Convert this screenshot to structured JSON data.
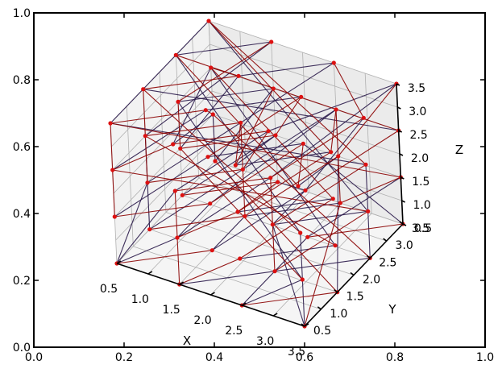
{
  "chart_data": {
    "type": "scatter",
    "projection": "3d",
    "title": "",
    "outer_axes": {
      "xlim": [
        0.0,
        1.0
      ],
      "ylim": [
        0.0,
        1.0
      ],
      "xticks": [
        "0.0",
        "0.2",
        "0.4",
        "0.6",
        "0.8",
        "1.0"
      ],
      "yticks": [
        "0.0",
        "0.2",
        "0.4",
        "0.6",
        "0.8",
        "1.0"
      ]
    },
    "axes3d": {
      "xlabel": "X",
      "ylabel": "Y",
      "zlabel": "Z",
      "xlim": [
        0.5,
        3.5
      ],
      "ylim": [
        0.5,
        3.5
      ],
      "zlim": [
        0.5,
        3.5
      ],
      "xticks": [
        "0.5",
        "1.0",
        "1.5",
        "2.0",
        "2.5",
        "3.0",
        "3.5"
      ],
      "yticks": [
        "0.5",
        "1.0",
        "1.5",
        "2.0",
        "2.5",
        "3.0",
        "3.5"
      ],
      "zticks": [
        "0.5",
        "1.0",
        "1.5",
        "2.0",
        "2.5",
        "3.0",
        "3.5"
      ],
      "grid": true
    },
    "colors": {
      "point": "#dd1111",
      "edge_dark": "#2a1a4a",
      "edge_red": "#8b0000",
      "pane_left": "#f2f2f2",
      "pane_back": "#ebebeb",
      "pane_floor": "#f5f5f5",
      "grid": "#b0b0b0"
    },
    "points": [
      [
        0.5,
        0.5,
        0.5
      ],
      [
        1.5,
        0.5,
        0.5
      ],
      [
        2.5,
        0.5,
        0.5
      ],
      [
        3.5,
        0.5,
        0.5
      ],
      [
        0.5,
        1.5,
        0.5
      ],
      [
        1.5,
        1.5,
        0.5
      ],
      [
        2.5,
        1.5,
        0.5
      ],
      [
        3.5,
        1.5,
        0.5
      ],
      [
        0.5,
        2.5,
        0.5
      ],
      [
        1.5,
        2.5,
        0.5
      ],
      [
        2.5,
        2.5,
        0.5
      ],
      [
        3.5,
        2.5,
        0.5
      ],
      [
        0.5,
        3.5,
        0.5
      ],
      [
        1.5,
        3.5,
        0.5
      ],
      [
        2.5,
        3.5,
        0.5
      ],
      [
        3.5,
        3.5,
        0.5
      ],
      [
        0.5,
        0.5,
        1.5
      ],
      [
        1.5,
        0.5,
        1.5
      ],
      [
        2.5,
        0.5,
        1.5
      ],
      [
        3.5,
        0.5,
        1.5
      ],
      [
        0.5,
        1.5,
        1.5
      ],
      [
        1.5,
        1.5,
        1.5
      ],
      [
        2.5,
        1.5,
        1.5
      ],
      [
        3.5,
        1.5,
        1.5
      ],
      [
        0.5,
        2.5,
        1.5
      ],
      [
        1.5,
        2.5,
        1.5
      ],
      [
        2.5,
        2.5,
        1.5
      ],
      [
        3.5,
        2.5,
        1.5
      ],
      [
        0.5,
        3.5,
        1.5
      ],
      [
        1.5,
        3.5,
        1.5
      ],
      [
        2.5,
        3.5,
        1.5
      ],
      [
        3.5,
        3.5,
        1.5
      ],
      [
        0.5,
        0.5,
        2.5
      ],
      [
        1.5,
        0.5,
        2.5
      ],
      [
        2.5,
        0.5,
        2.5
      ],
      [
        3.5,
        0.5,
        2.5
      ],
      [
        0.5,
        1.5,
        2.5
      ],
      [
        1.5,
        1.5,
        2.5
      ],
      [
        2.5,
        1.5,
        2.5
      ],
      [
        3.5,
        1.5,
        2.5
      ],
      [
        0.5,
        2.5,
        2.5
      ],
      [
        1.5,
        2.5,
        2.5
      ],
      [
        2.5,
        2.5,
        2.5
      ],
      [
        3.5,
        2.5,
        2.5
      ],
      [
        0.5,
        3.5,
        2.5
      ],
      [
        1.5,
        3.5,
        2.5
      ],
      [
        2.5,
        3.5,
        2.5
      ],
      [
        3.5,
        3.5,
        2.5
      ],
      [
        0.5,
        0.5,
        3.5
      ],
      [
        1.5,
        0.5,
        3.5
      ],
      [
        2.5,
        0.5,
        3.5
      ],
      [
        3.5,
        0.5,
        3.5
      ],
      [
        0.5,
        1.5,
        3.5
      ],
      [
        1.5,
        1.5,
        3.5
      ],
      [
        2.5,
        1.5,
        3.5
      ],
      [
        3.5,
        1.5,
        3.5
      ],
      [
        0.5,
        2.5,
        3.5
      ],
      [
        1.5,
        2.5,
        3.5
      ],
      [
        2.5,
        2.5,
        3.5
      ],
      [
        3.5,
        2.5,
        3.5
      ],
      [
        0.5,
        3.5,
        3.5
      ],
      [
        1.5,
        3.5,
        3.5
      ],
      [
        2.5,
        3.5,
        3.5
      ],
      [
        3.5,
        3.5,
        3.5
      ]
    ],
    "edges_dark": [
      [
        0,
        17
      ],
      [
        0,
        20
      ],
      [
        1,
        6
      ],
      [
        2,
        19
      ],
      [
        3,
        22
      ],
      [
        4,
        25
      ],
      [
        5,
        26
      ],
      [
        6,
        11
      ],
      [
        7,
        30
      ],
      [
        8,
        29
      ],
      [
        9,
        14
      ],
      [
        10,
        31
      ],
      [
        12,
        45
      ],
      [
        13,
        26
      ],
      [
        15,
        42
      ],
      [
        16,
        37
      ],
      [
        17,
        38
      ],
      [
        18,
        23
      ],
      [
        19,
        40
      ],
      [
        20,
        41
      ],
      [
        21,
        46
      ],
      [
        22,
        27
      ],
      [
        23,
        44
      ],
      [
        24,
        57
      ],
      [
        25,
        46
      ],
      [
        26,
        59
      ],
      [
        27,
        60
      ],
      [
        28,
        49
      ],
      [
        29,
        50
      ],
      [
        30,
        51
      ],
      [
        32,
        53
      ],
      [
        33,
        54
      ],
      [
        34,
        39
      ],
      [
        35,
        56
      ],
      [
        36,
        61
      ],
      [
        37,
        42
      ],
      [
        38,
        63
      ],
      [
        40,
        45
      ],
      [
        41,
        62
      ],
      [
        43,
        48
      ],
      [
        44,
        49
      ],
      [
        47,
        52
      ],
      [
        48,
        60
      ],
      [
        50,
        55
      ],
      [
        53,
        58
      ],
      [
        54,
        63
      ],
      [
        56,
        61
      ],
      [
        57,
        62
      ],
      [
        0,
        33
      ],
      [
        12,
        28
      ],
      [
        3,
        35
      ],
      [
        15,
        63
      ],
      [
        2,
        10
      ],
      [
        5,
        9
      ],
      [
        17,
        21
      ],
      [
        22,
        26
      ],
      [
        11,
        43
      ],
      [
        4,
        36
      ]
    ],
    "edges_red": [
      [
        0,
        5
      ],
      [
        1,
        18
      ],
      [
        2,
        7
      ],
      [
        3,
        14
      ],
      [
        4,
        9
      ],
      [
        6,
        27
      ],
      [
        7,
        12
      ],
      [
        8,
        13
      ],
      [
        9,
        30
      ],
      [
        10,
        15
      ],
      [
        11,
        28
      ],
      [
        13,
        34
      ],
      [
        14,
        31
      ],
      [
        16,
        21
      ],
      [
        17,
        34
      ],
      [
        18,
        39
      ],
      [
        19,
        24
      ],
      [
        20,
        25
      ],
      [
        21,
        42
      ],
      [
        22,
        43
      ],
      [
        23,
        36
      ],
      [
        24,
        29
      ],
      [
        25,
        54
      ],
      [
        26,
        47
      ],
      [
        27,
        32
      ],
      [
        28,
        53
      ],
      [
        29,
        58
      ],
      [
        30,
        63
      ],
      [
        31,
        48
      ],
      [
        32,
        49
      ],
      [
        33,
        38
      ],
      [
        34,
        55
      ],
      [
        35,
        52
      ],
      [
        36,
        41
      ],
      [
        37,
        58
      ],
      [
        38,
        59
      ],
      [
        39,
        44
      ],
      [
        40,
        61
      ],
      [
        41,
        50
      ],
      [
        42,
        51
      ],
      [
        43,
        60
      ],
      [
        44,
        57
      ],
      [
        45,
        50
      ],
      [
        46,
        55
      ],
      [
        47,
        56
      ],
      [
        48,
        53
      ],
      [
        49,
        54
      ],
      [
        51,
        56
      ],
      [
        52,
        57
      ],
      [
        55,
        60
      ],
      [
        59,
        62
      ],
      [
        6,
        38
      ],
      [
        20,
        52
      ],
      [
        9,
        41
      ],
      [
        16,
        48
      ],
      [
        1,
        33
      ],
      [
        14,
        46
      ],
      [
        24,
        40
      ]
    ]
  }
}
